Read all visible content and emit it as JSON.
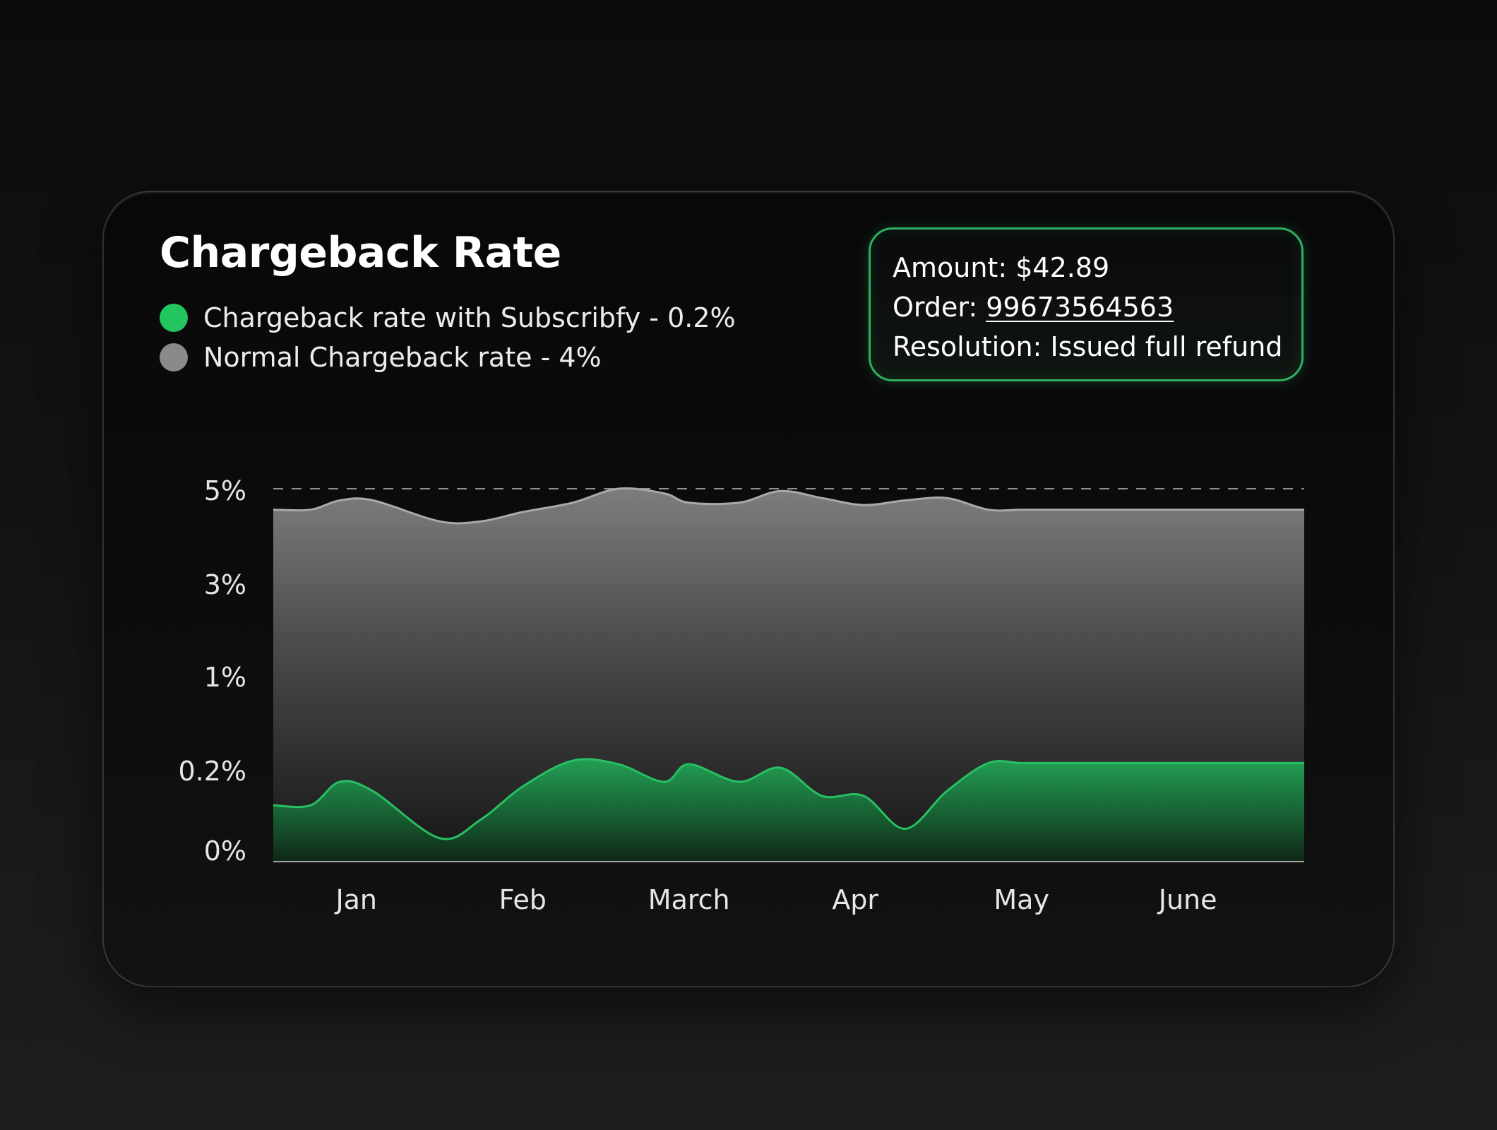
{
  "card": {
    "title": "Chargeback Rate"
  },
  "legend": [
    {
      "label": "Chargeback rate with Subscribfy - 0.2%",
      "color": "#22c55e"
    },
    {
      "label": "Normal Chargeback rate - 4%",
      "color": "#8a8a8a"
    }
  ],
  "tooltip": {
    "amount_label": "Amount:",
    "amount_value": "$42.89",
    "order_label": "Order:",
    "order_value": "99673564563",
    "resolution_label": "Resolution:",
    "resolution_value": "Issued full refund",
    "accent_color": "#2eb062"
  },
  "chart_data": {
    "type": "area",
    "title": "Chargeback Rate",
    "xlabel": "",
    "ylabel": "",
    "x_tick_labels": [
      "Jan",
      "Feb",
      "March",
      "Apr",
      "May",
      "June"
    ],
    "y_tick_labels": [
      "0%",
      "0.2%",
      "1%",
      "3%",
      "5%"
    ],
    "y_tick_values": [
      0,
      0.2,
      1,
      3,
      5
    ],
    "y_scale": "nonlinear (ticks evenly spaced)",
    "ylim": [
      0,
      5
    ],
    "grid": "horizontal dashed",
    "legend_position": "top-left",
    "x": [
      0,
      0.45,
      0.8,
      1.2,
      2.0,
      2.5,
      3.0,
      3.6,
      4.15,
      4.7,
      5.0,
      5.6,
      6.1,
      6.6,
      7.1,
      7.6,
      8.1,
      8.6,
      9.0,
      9.5,
      10.0,
      10.6,
      11.2,
      11.6,
      12.0,
      12.4
    ],
    "x_tick_positions": [
      1,
      3,
      5,
      7,
      9,
      11
    ],
    "series": [
      {
        "name": "Normal Chargeback rate - 4%",
        "color": "#8a8a8a",
        "values": [
          4.55,
          4.55,
          4.75,
          4.75,
          4.3,
          4.3,
          4.5,
          4.7,
          5.0,
          4.9,
          4.7,
          4.7,
          4.95,
          4.8,
          4.65,
          4.75,
          4.8,
          4.55,
          4.55,
          4.55,
          4.55,
          4.55,
          4.55,
          4.55,
          4.55,
          4.55
        ]
      },
      {
        "name": "Chargeback rate with Subscribfy - 0.2%",
        "color": "#22c55e",
        "values": [
          0.12,
          0.12,
          0.17,
          0.15,
          0.05,
          0.09,
          0.16,
          0.26,
          0.23,
          0.17,
          0.23,
          0.17,
          0.2,
          0.14,
          0.14,
          0.07,
          0.15,
          0.24,
          0.24,
          0.24,
          0.24,
          0.24,
          0.24,
          0.24,
          0.24,
          0.24
        ]
      }
    ]
  }
}
